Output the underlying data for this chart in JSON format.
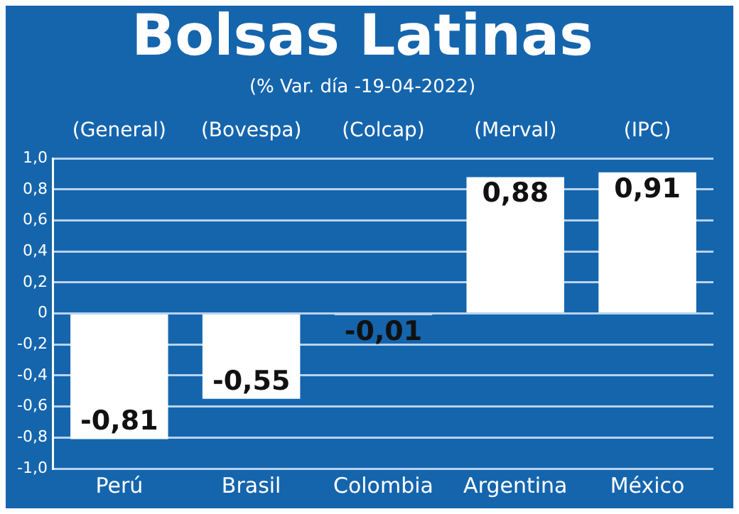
{
  "chart_data": {
    "type": "bar",
    "title": "Bolsas Latinas",
    "subtitle": "(% Var. día -19-04-2022)",
    "categories": [
      "Perú",
      "Brasil",
      "Colombia",
      "Argentina",
      "México"
    ],
    "values": [
      -0.81,
      -0.55,
      -0.01,
      0.88,
      0.91
    ],
    "value_labels": [
      "-0,81",
      "-0,55",
      "-0,01",
      "0,88",
      "0,91"
    ],
    "color": "#ffffff",
    "ylim": [
      -1,
      1
    ],
    "yticks": [
      {
        "value": -1,
        "label": "-1,0"
      },
      {
        "value": -0.8,
        "label": "-0,8"
      },
      {
        "value": -0.6,
        "label": "-0,6"
      },
      {
        "value": -0.4,
        "label": "-0,4"
      },
      {
        "value": -0.2,
        "label": "-0,2"
      },
      0,
      {
        "value": 0.2,
        "label": "0,2"
      },
      {
        "value": 0.4,
        "label": "0,4"
      },
      {
        "value": 0.6,
        "label": "0,6"
      },
      {
        "value": 0.8,
        "label": "0,8"
      },
      {
        "value": 1,
        "label": "1,0"
      }
    ],
    "grid": "y",
    "legend": false,
    "annotations": [
      "(General)",
      "(Bovespa)",
      "(Colcap)",
      "(Merval)",
      "(IPC)"
    ]
  }
}
